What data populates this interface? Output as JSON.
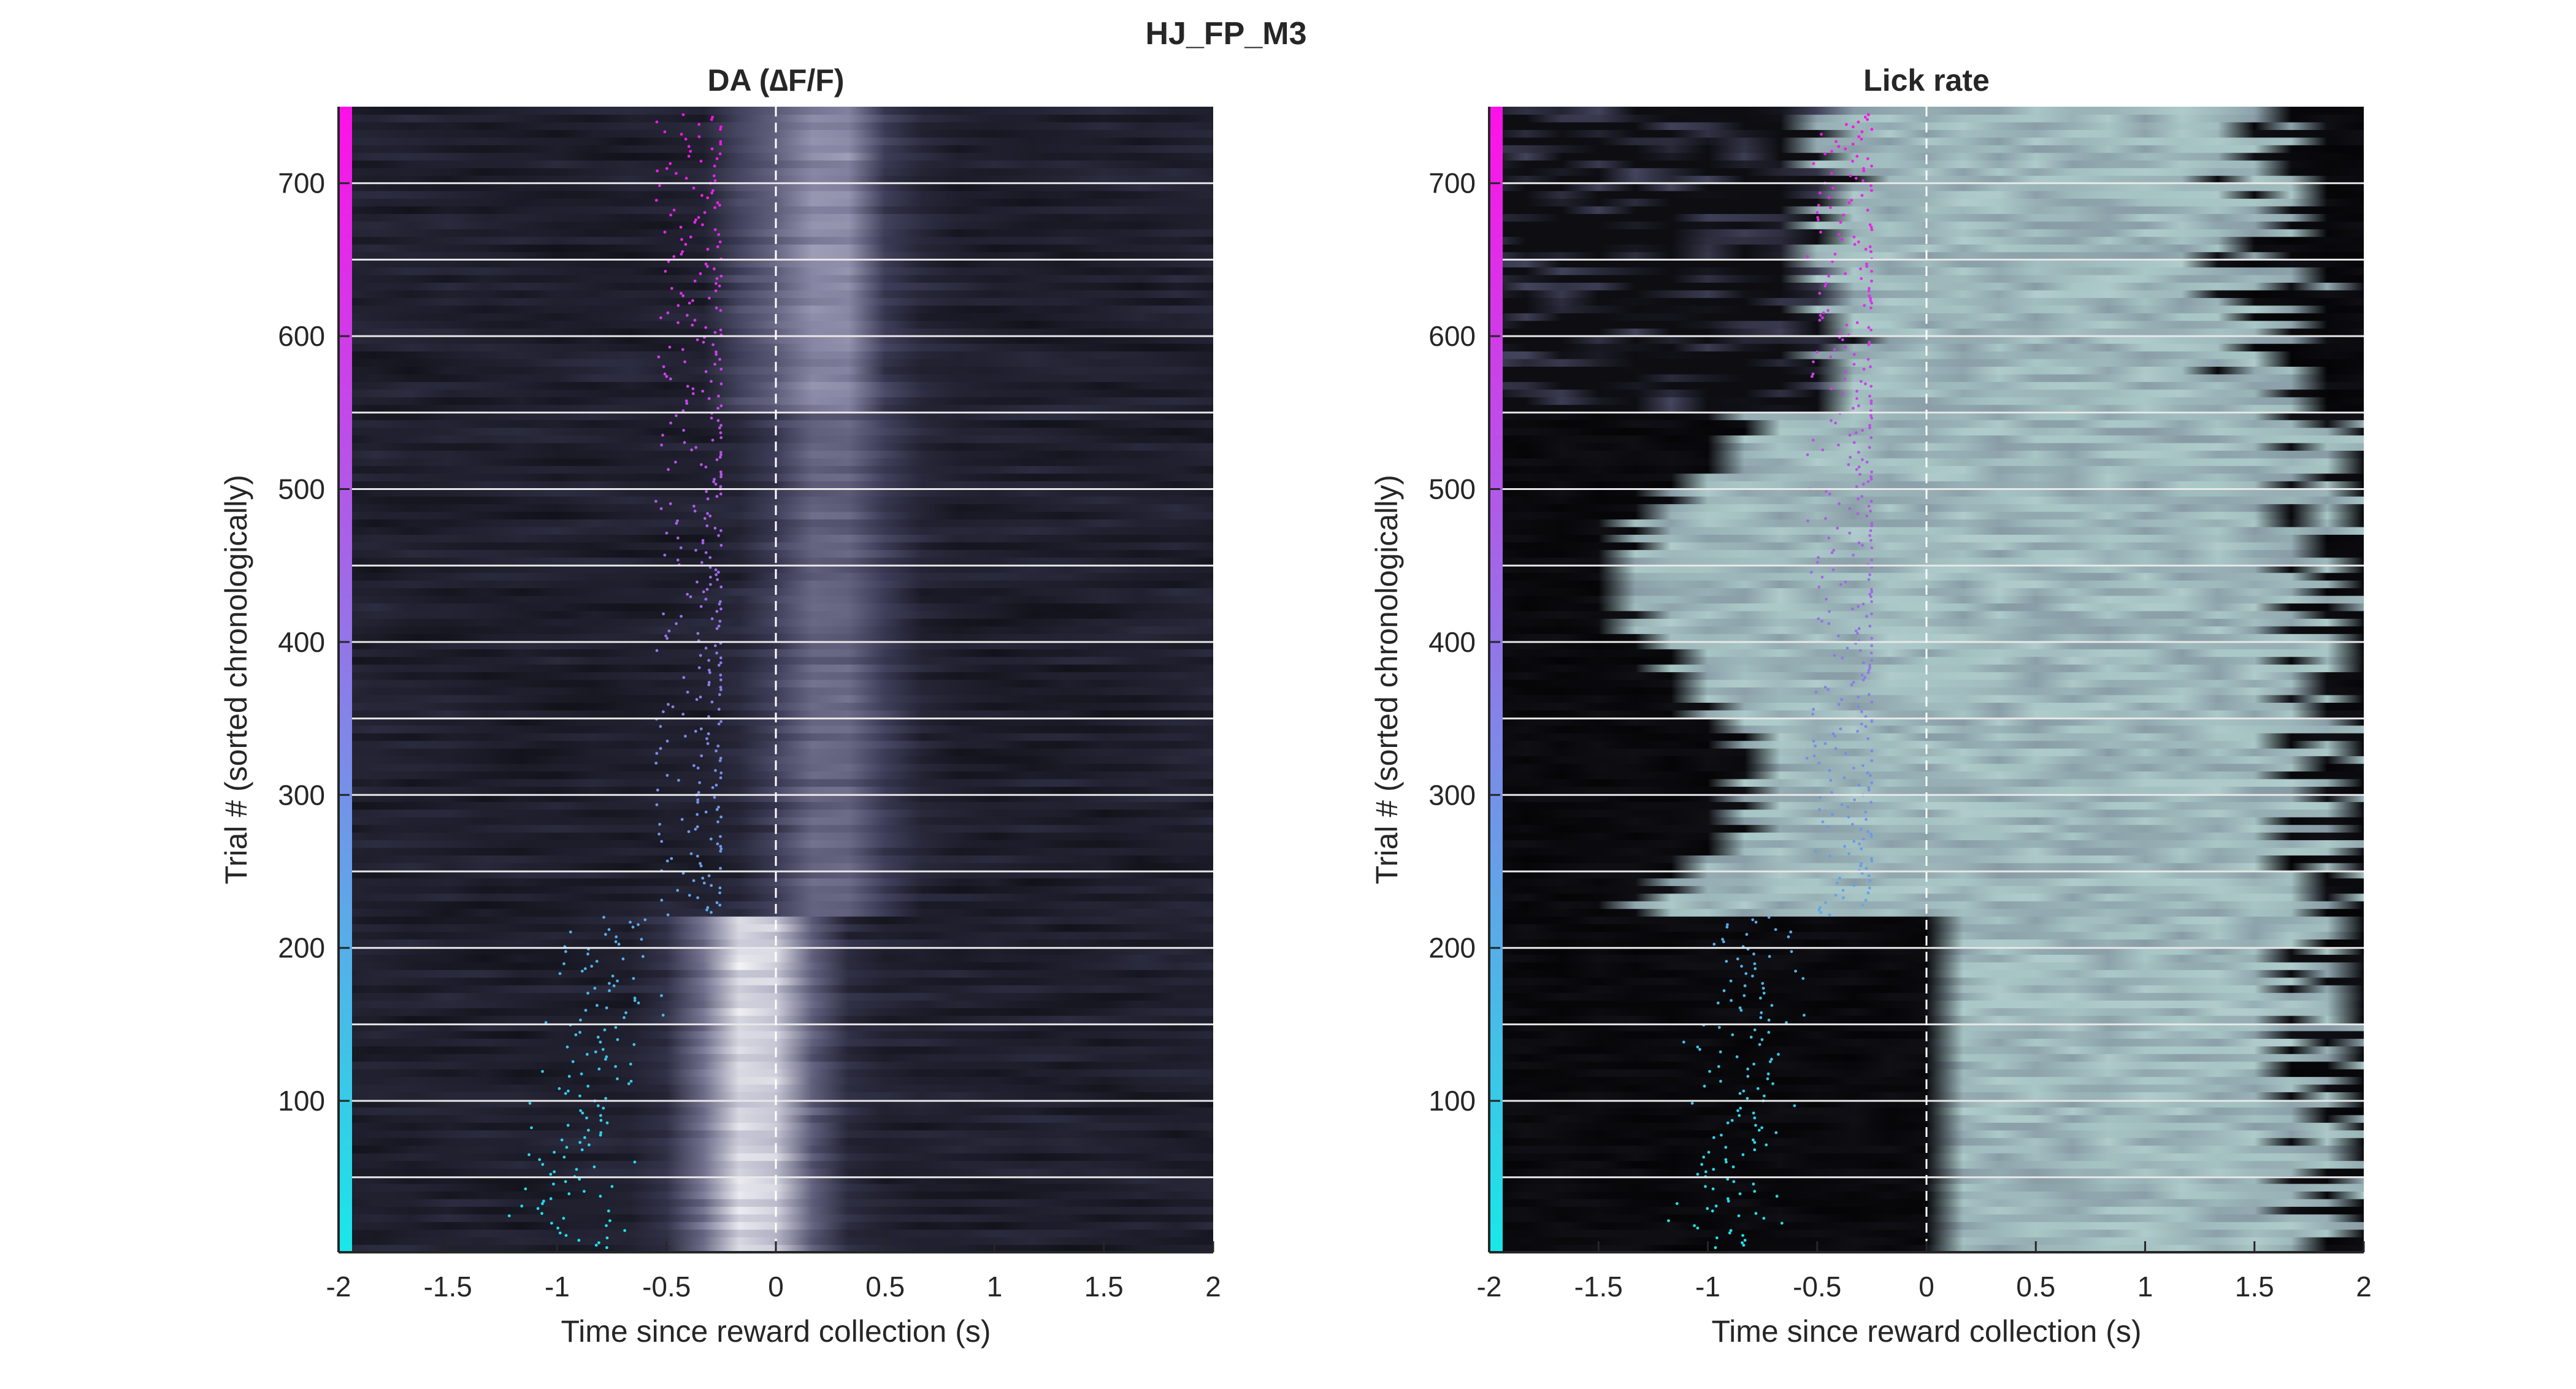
{
  "figure": {
    "title": "HJ_FP_M3"
  },
  "chart_data": [
    {
      "type": "heatmap",
      "title": "DA (∆F/F)",
      "xlabel": "Time since reward collection (s)",
      "ylabel": "Trial # (sorted chronologically)",
      "xlim": [
        -2,
        2
      ],
      "ylim": [
        1,
        750
      ],
      "x_ticks": [
        -2,
        -1.5,
        -1,
        -0.5,
        0,
        0.5,
        1,
        1.5,
        2
      ],
      "x_tick_labels": [
        "-2",
        "-1.5",
        "-1",
        "-0.5",
        "0",
        "0.5",
        "1",
        "1.5",
        "2"
      ],
      "y_ticks": [
        100,
        200,
        300,
        400,
        500,
        600,
        700
      ],
      "y_tick_labels": [
        "100",
        "200",
        "300",
        "400",
        "500",
        "600",
        "700"
      ],
      "n_trials": 750,
      "block_boundaries": [
        50,
        100,
        150,
        200,
        250,
        300,
        350,
        400,
        450,
        500,
        550,
        600,
        650,
        700
      ],
      "event_line_x": 0,
      "trial_colorbar": {
        "from": "#18e8e8",
        "to": "#ff10e8"
      },
      "colormap": [
        "#000000",
        "#3a3a55",
        "#8a8aa8",
        "#ffffff"
      ],
      "grid": false,
      "legend": "none"
    },
    {
      "type": "heatmap",
      "title": "Lick rate",
      "xlabel": "Time since reward collection (s)",
      "ylabel": "Trial # (sorted chronologically)",
      "xlim": [
        -2,
        2
      ],
      "ylim": [
        1,
        750
      ],
      "x_ticks": [
        -2,
        -1.5,
        -1,
        -0.5,
        0,
        0.5,
        1,
        1.5,
        2
      ],
      "x_tick_labels": [
        "-2",
        "-1.5",
        "-1",
        "-0.5",
        "0",
        "0.5",
        "1",
        "1.5",
        "2"
      ],
      "y_ticks": [
        100,
        200,
        300,
        400,
        500,
        600,
        700
      ],
      "y_tick_labels": [
        "100",
        "200",
        "300",
        "400",
        "500",
        "600",
        "700"
      ],
      "n_trials": 750,
      "block_boundaries": [
        50,
        100,
        150,
        200,
        250,
        300,
        350,
        400,
        450,
        500,
        550,
        600,
        650,
        700
      ],
      "event_line_x": 0,
      "trial_colorbar": {
        "from": "#18e8e8",
        "to": "#ff10e8"
      },
      "colormap": [
        "#000000",
        "#4a4a66",
        "#a8c6c6",
        "#ffffff"
      ],
      "grid": false,
      "legend": "none"
    }
  ]
}
